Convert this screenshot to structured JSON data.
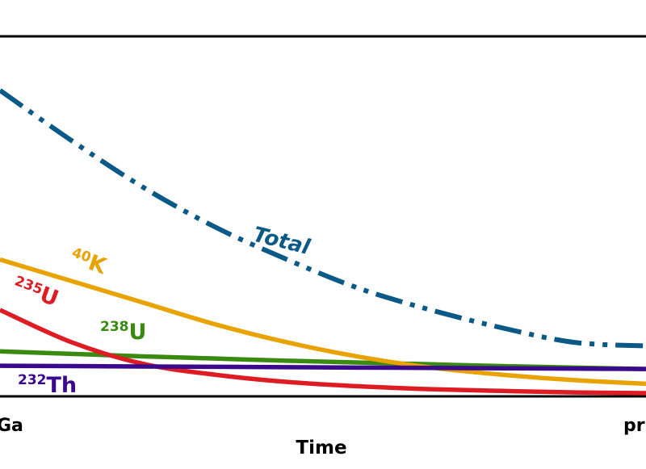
{
  "chart_data": {
    "type": "line",
    "title": "",
    "xlabel": "Time",
    "ylabel": "",
    "x_tick_labels": {
      "left": "Ga",
      "right": "pr"
    },
    "xlim": [
      4.5,
      0
    ],
    "ylim": [
      0,
      1
    ],
    "x": [
      4.5,
      4.0,
      3.5,
      3.0,
      2.5,
      2.0,
      1.5,
      1.0,
      0.5,
      0.0
    ],
    "series": [
      {
        "name": "Total",
        "label_text": "Total",
        "color": "#0b5986",
        "style": "dash-dot-dot",
        "values": [
          0.85,
          0.71,
          0.58,
          0.47,
          0.38,
          0.3,
          0.24,
          0.19,
          0.15,
          0.14
        ]
      },
      {
        "name": "40K",
        "label_sup": "40",
        "label_base": "K",
        "color": "#e8a300",
        "style": "solid",
        "values": [
          0.38,
          0.32,
          0.26,
          0.2,
          0.15,
          0.11,
          0.08,
          0.06,
          0.045,
          0.035
        ]
      },
      {
        "name": "235U",
        "label_sup": "235",
        "label_base": "U",
        "color": "#dd1c24",
        "style": "solid",
        "values": [
          0.24,
          0.15,
          0.09,
          0.06,
          0.04,
          0.028,
          0.02,
          0.015,
          0.011,
          0.009
        ]
      },
      {
        "name": "238U",
        "label_sup": "238",
        "label_base": "U",
        "color": "#3a8a12",
        "style": "solid",
        "values": [
          0.125,
          0.118,
          0.111,
          0.105,
          0.099,
          0.094,
          0.089,
          0.084,
          0.08,
          0.076
        ]
      },
      {
        "name": "232Th",
        "label_sup": "232",
        "label_base": "Th",
        "color": "#3b0a8c",
        "style": "solid",
        "values": [
          0.085,
          0.084,
          0.083,
          0.082,
          0.081,
          0.08,
          0.079,
          0.078,
          0.077,
          0.076
        ]
      }
    ]
  }
}
